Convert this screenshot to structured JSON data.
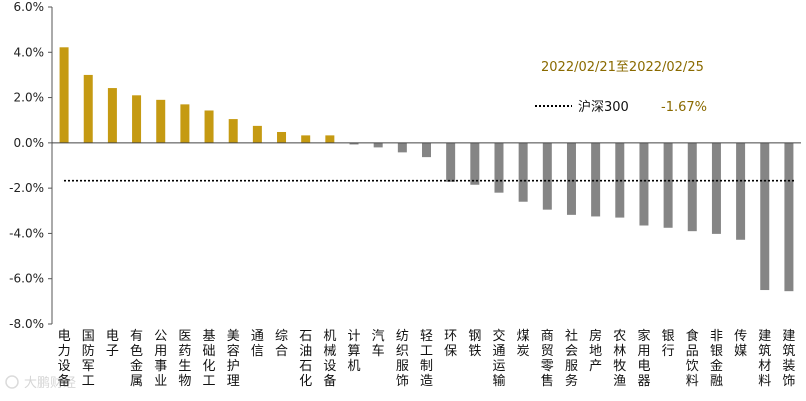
{
  "chart_data": {
    "type": "bar",
    "annotation_period": "2022/02/21至2022/02/25",
    "benchmark": {
      "name": "沪深300",
      "label": "-1.67%",
      "value": -1.67
    },
    "ylim": [
      -8,
      6
    ],
    "yticks": [
      "6.0%",
      "4.0%",
      "2.0%",
      "0.0%",
      "-2.0%",
      "-4.0%",
      "-6.0%",
      "-8.0%"
    ],
    "ytick_values": [
      6,
      4,
      2,
      0,
      -2,
      -4,
      -6,
      -8
    ],
    "categories": [
      "电力设备",
      "国防军工",
      "电子",
      "有色金属",
      "公用事业",
      "医药生物",
      "基础化工",
      "美容护理",
      "通信",
      "综合",
      "石油石化",
      "机械设备",
      "计算机",
      "汽车",
      "纺织服饰",
      "轻工制造",
      "环保",
      "钢铁",
      "交通运输",
      "煤炭",
      "商贸零售",
      "社会服务",
      "房地产",
      "农林牧渔",
      "家用电器",
      "银行",
      "食品饮料",
      "非银金融",
      "传媒",
      "建筑材料",
      "建筑装饰"
    ],
    "values": [
      4.22,
      3.0,
      2.42,
      2.1,
      1.9,
      1.7,
      1.43,
      1.05,
      0.75,
      0.48,
      0.33,
      0.33,
      -0.07,
      -0.2,
      -0.42,
      -0.63,
      -1.72,
      -1.85,
      -2.2,
      -2.6,
      -2.95,
      -3.18,
      -3.25,
      -3.3,
      -3.65,
      -3.75,
      -3.9,
      -4.02,
      -4.28,
      -6.5,
      -6.55
    ],
    "colors": {
      "positive": "#C59A12",
      "negative": "#858585",
      "benchmark_line": "#000000",
      "annotation_text": "#8A6A00"
    },
    "grid": false,
    "legend": "top-right"
  },
  "watermark": "大鹏财经"
}
